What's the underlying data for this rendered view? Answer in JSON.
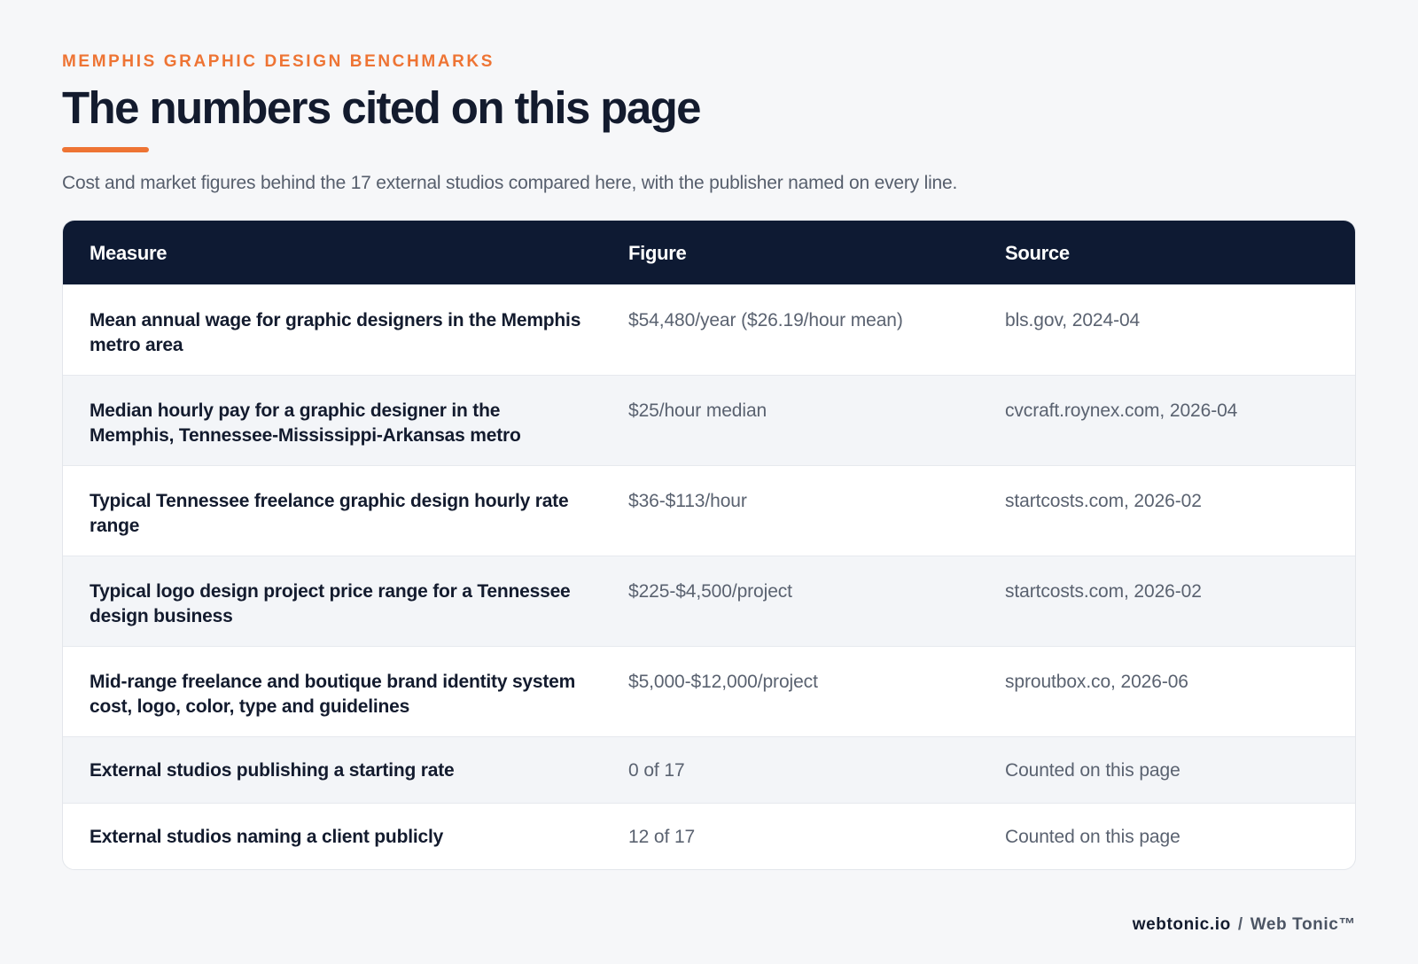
{
  "header": {
    "eyebrow": "MEMPHIS GRAPHIC DESIGN BENCHMARKS",
    "title": "The numbers cited on this page",
    "subtitle": "Cost and market figures behind the 17 external studios compared here, with the publisher named on every line."
  },
  "table": {
    "columns": [
      "Measure",
      "Figure",
      "Source"
    ],
    "rows": [
      {
        "measure": "Mean annual wage for graphic designers in the Memphis metro area",
        "figure": "$54,480/year ($26.19/hour mean)",
        "source": "bls.gov, 2024-04"
      },
      {
        "measure": "Median hourly pay for a graphic designer in the Memphis, Tennessee-Mississippi-Arkansas metro",
        "figure": "$25/hour median",
        "source": "cvcraft.roynex.com, 2026-04"
      },
      {
        "measure": "Typical Tennessee freelance graphic design hourly rate range",
        "figure": "$36-$113/hour",
        "source": "startcosts.com, 2026-02"
      },
      {
        "measure": "Typical logo design project price range for a Tennessee design business",
        "figure": "$225-$4,500/project",
        "source": "startcosts.com, 2026-02"
      },
      {
        "measure": "Mid-range freelance and boutique brand identity system cost, logo, color, type and guidelines",
        "figure": "$5,000-$12,000/project",
        "source": "sproutbox.co, 2026-06"
      },
      {
        "measure": "External studios publishing a starting rate",
        "figure": "0 of 17",
        "source": "Counted on this page"
      },
      {
        "measure": "External studios naming a client publicly",
        "figure": "12 of 17",
        "source": "Counted on this page"
      }
    ]
  },
  "footer": {
    "domain": "webtonic.io",
    "separator": "/",
    "brand": "Web Tonic™"
  },
  "colors": {
    "accent": "#ee7434",
    "header_bg": "#0e1a33",
    "page_bg": "#f6f7f9"
  }
}
